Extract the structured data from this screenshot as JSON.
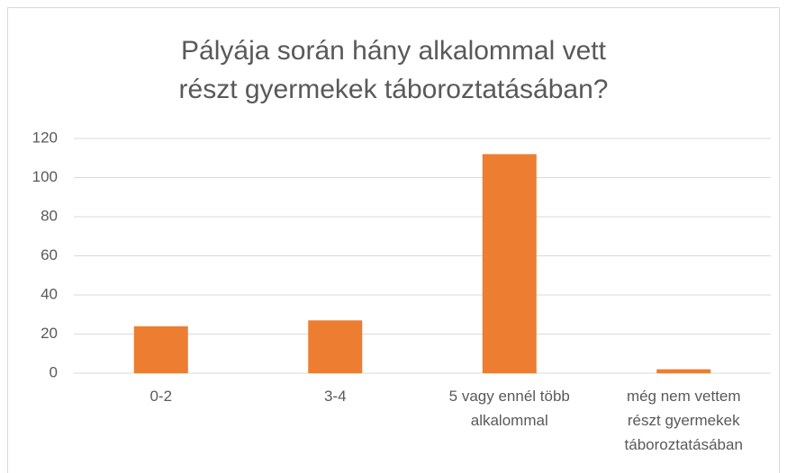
{
  "chart_data": {
    "type": "bar",
    "title": "Pályája során hány alkalommal vett részt gyermekek táboroztatásában?",
    "categories": [
      "0-2",
      "3-4",
      "5 vagy ennél több alkalommal",
      "még nem vettem részt gyermekek táboroztatásában"
    ],
    "values": [
      24,
      27,
      112,
      2
    ],
    "color": "#ed7d31",
    "ylim": [
      0,
      120
    ],
    "yticks": [
      0,
      20,
      40,
      60,
      80,
      100,
      120
    ],
    "grid": true
  }
}
